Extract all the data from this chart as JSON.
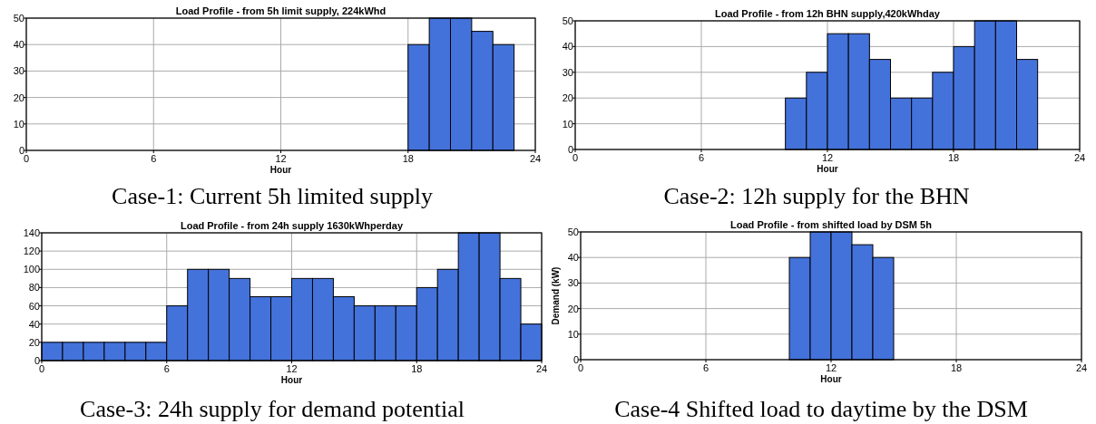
{
  "chart_data": [
    {
      "type": "histogram",
      "title": "Load Profile - from 5h limit supply, 224kWhd",
      "xlabel": "Hour",
      "annotations": [
        "Case-1: Current 5h limited supply"
      ],
      "bins": [
        0,
        1,
        2,
        3,
        4,
        5,
        6,
        7,
        8,
        9,
        10,
        11,
        12,
        13,
        14,
        15,
        16,
        17,
        18,
        19,
        20,
        21,
        22,
        23,
        24
      ],
      "values": [
        0,
        0,
        0,
        0,
        0,
        0,
        0,
        0,
        0,
        0,
        0,
        0,
        0,
        0,
        0,
        0,
        0,
        0,
        40,
        50,
        50,
        45,
        40,
        0
      ],
      "color": "#4472db",
      "xlim": [
        0,
        24
      ],
      "xticks": [
        0,
        6,
        12,
        18,
        24
      ],
      "ylim": [
        0,
        50
      ],
      "yticks": [
        0,
        10,
        20,
        30,
        40,
        50
      ],
      "grid": true
    },
    {
      "type": "histogram",
      "title": "Load Profile - from 12h BHN supply,420kWhday",
      "xlabel": "Hour",
      "annotations": [
        "Case-2: 12h supply for the BHN"
      ],
      "bins": [
        0,
        1,
        2,
        3,
        4,
        5,
        6,
        7,
        8,
        9,
        10,
        11,
        12,
        13,
        14,
        15,
        16,
        17,
        18,
        19,
        20,
        21,
        22,
        23,
        24
      ],
      "values": [
        0,
        0,
        0,
        0,
        0,
        0,
        0,
        0,
        0,
        0,
        20,
        30,
        45,
        45,
        35,
        20,
        20,
        30,
        40,
        50,
        50,
        35,
        0,
        0
      ],
      "color": "#4472db",
      "xlim": [
        0,
        24
      ],
      "xticks": [
        0,
        6,
        12,
        18,
        24
      ],
      "ylim": [
        0,
        50
      ],
      "yticks": [
        0,
        10,
        20,
        30,
        40,
        50
      ],
      "grid": true
    },
    {
      "type": "histogram",
      "title": "Load Profile - from 24h supply 1630kWhperday",
      "xlabel": "Hour",
      "annotations": [
        "Case-3: 24h supply for demand potential"
      ],
      "bins": [
        0,
        1,
        2,
        3,
        4,
        5,
        6,
        7,
        8,
        9,
        10,
        11,
        12,
        13,
        14,
        15,
        16,
        17,
        18,
        19,
        20,
        21,
        22,
        23,
        24
      ],
      "values": [
        20,
        20,
        20,
        20,
        20,
        20,
        60,
        100,
        100,
        90,
        70,
        70,
        90,
        90,
        70,
        60,
        60,
        60,
        80,
        100,
        140,
        140,
        90,
        40
      ],
      "color": "#4472db",
      "xlim": [
        0,
        24
      ],
      "xticks": [
        0,
        6,
        12,
        18,
        24
      ],
      "ylim": [
        0,
        140
      ],
      "yticks": [
        0,
        20,
        40,
        60,
        80,
        100,
        120,
        140
      ],
      "grid": true
    },
    {
      "type": "histogram",
      "title": "Load Profile - from shifted load by DSM 5h",
      "xlabel": "Hour",
      "ylabel": "Demand (kW)",
      "annotations": [
        "Case-4 Shifted load to daytime by the DSM"
      ],
      "bins": [
        0,
        1,
        2,
        3,
        4,
        5,
        6,
        7,
        8,
        9,
        10,
        11,
        12,
        13,
        14,
        15,
        16,
        17,
        18,
        19,
        20,
        21,
        22,
        23,
        24
      ],
      "values": [
        0,
        0,
        0,
        0,
        0,
        0,
        0,
        0,
        0,
        0,
        40,
        50,
        50,
        45,
        40,
        0,
        0,
        0,
        0,
        0,
        0,
        0,
        0,
        0
      ],
      "color": "#4472db",
      "xlim": [
        0,
        24
      ],
      "xticks": [
        0,
        6,
        12,
        18,
        24
      ],
      "ylim": [
        0,
        50
      ],
      "yticks": [
        0,
        10,
        20,
        30,
        40,
        50
      ],
      "grid": true
    }
  ]
}
